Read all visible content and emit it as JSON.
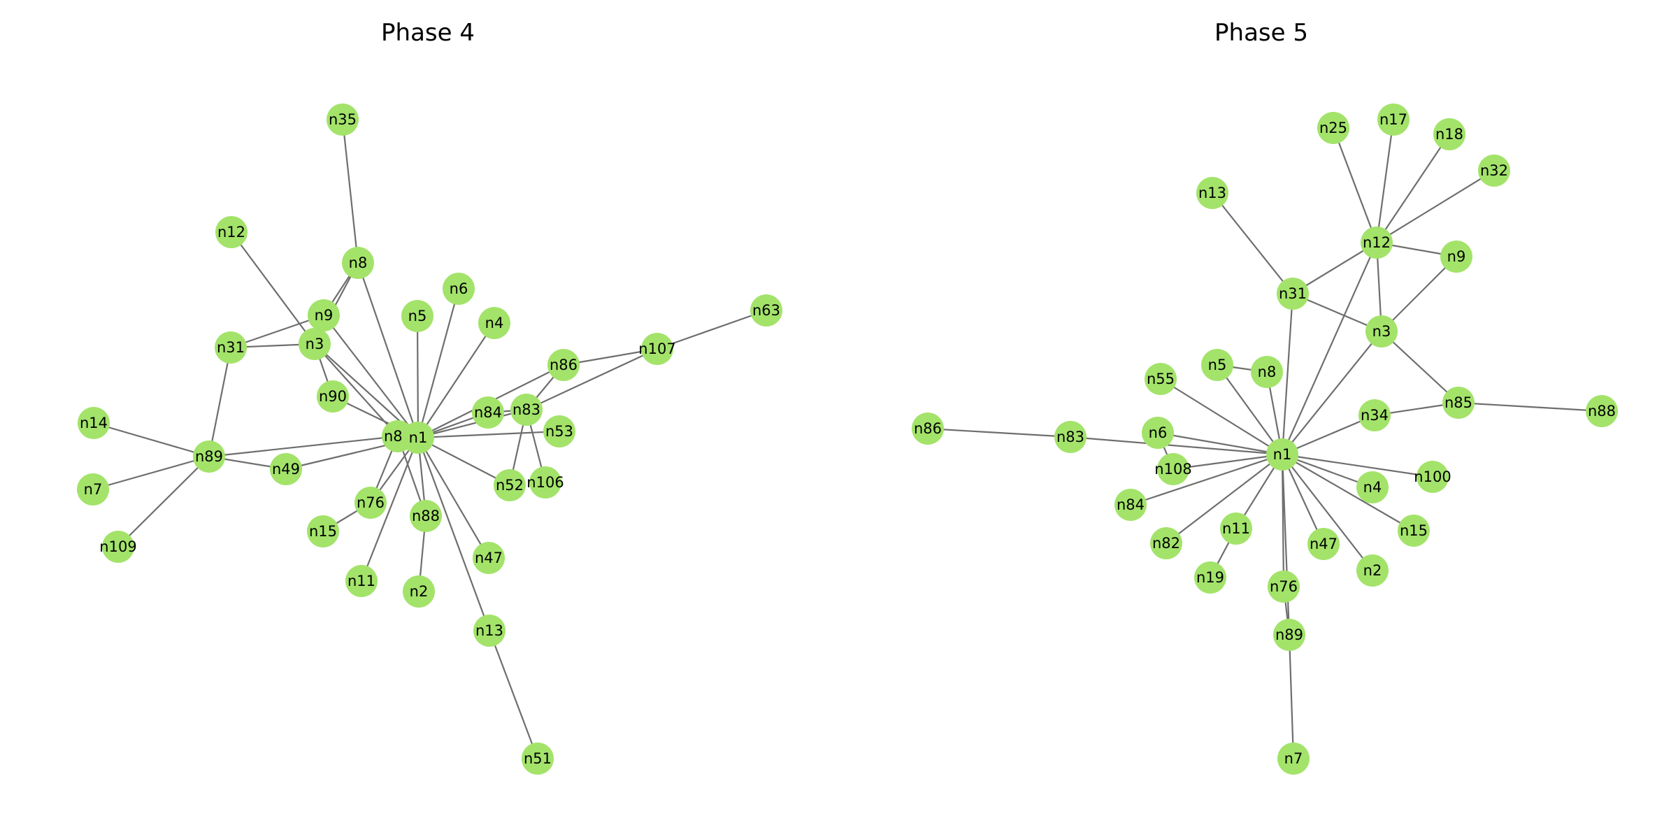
{
  "colors": {
    "node": "#a3e36a",
    "edge": "#6e6e6e",
    "label": "#000000",
    "background": "#ffffff"
  },
  "panels": [
    {
      "title": "Phase 4",
      "nodes": [
        "n35",
        "n12",
        "n8",
        "n9",
        "n31",
        "n3",
        "n5",
        "n6",
        "n4",
        "n63",
        "n107",
        "n86",
        "n90",
        "n14",
        "n85",
        "n1",
        "n84",
        "n83",
        "n53",
        "n89",
        "n49",
        "n52",
        "n106",
        "n76",
        "n88",
        "n7",
        "n15",
        "n47",
        "n109",
        "n11",
        "n2",
        "n13",
        "n51"
      ],
      "edges": [
        [
          "n35",
          "n8"
        ],
        [
          "n12",
          "n3"
        ],
        [
          "n8",
          "n9"
        ],
        [
          "n8",
          "n3"
        ],
        [
          "n8",
          "n1"
        ],
        [
          "n9",
          "n31"
        ],
        [
          "n9",
          "n1"
        ],
        [
          "n31",
          "n3"
        ],
        [
          "n31",
          "n89"
        ],
        [
          "n3",
          "n90"
        ],
        [
          "n3",
          "n85"
        ],
        [
          "n3",
          "n1"
        ],
        [
          "n5",
          "n1"
        ],
        [
          "n6",
          "n1"
        ],
        [
          "n4",
          "n1"
        ],
        [
          "n63",
          "n107"
        ],
        [
          "n107",
          "n86"
        ],
        [
          "n107",
          "n83"
        ],
        [
          "n86",
          "n1"
        ],
        [
          "n86",
          "n83"
        ],
        [
          "n90",
          "n1"
        ],
        [
          "n14",
          "n89"
        ],
        [
          "n89",
          "n85"
        ],
        [
          "n89",
          "n49"
        ],
        [
          "n89",
          "n7"
        ],
        [
          "n89",
          "n109"
        ],
        [
          "n49",
          "n1"
        ],
        [
          "n85",
          "n1"
        ],
        [
          "n1",
          "n84"
        ],
        [
          "n1",
          "n83"
        ],
        [
          "n84",
          "n83"
        ],
        [
          "n83",
          "n52"
        ],
        [
          "n83",
          "n106"
        ],
        [
          "n1",
          "n53"
        ],
        [
          "n1",
          "n52"
        ],
        [
          "n1",
          "n76"
        ],
        [
          "n1",
          "n88"
        ],
        [
          "n1",
          "n47"
        ],
        [
          "n1",
          "n11"
        ],
        [
          "n1",
          "n13"
        ],
        [
          "n85",
          "n76"
        ],
        [
          "n85",
          "n88"
        ],
        [
          "n76",
          "n15"
        ],
        [
          "n88",
          "n2"
        ],
        [
          "n13",
          "n51"
        ]
      ]
    },
    {
      "title": "Phase 5",
      "nodes": [
        "n25",
        "n17",
        "n18",
        "n32",
        "n13",
        "n12",
        "n9",
        "n31",
        "n3",
        "n5",
        "n55",
        "n8",
        "n85",
        "n88",
        "n86",
        "n83",
        "n6",
        "n34",
        "n1",
        "n108",
        "n100",
        "n4",
        "n84",
        "n15",
        "n11",
        "n82",
        "n47",
        "n2",
        "n19",
        "n76",
        "n89",
        "n7"
      ],
      "edges": [
        [
          "n25",
          "n12"
        ],
        [
          "n17",
          "n12"
        ],
        [
          "n18",
          "n12"
        ],
        [
          "n32",
          "n12"
        ],
        [
          "n12",
          "n9"
        ],
        [
          "n12",
          "n31"
        ],
        [
          "n12",
          "n3"
        ],
        [
          "n12",
          "n1"
        ],
        [
          "n13",
          "n31"
        ],
        [
          "n31",
          "n3"
        ],
        [
          "n31",
          "n1"
        ],
        [
          "n9",
          "n3"
        ],
        [
          "n3",
          "n85"
        ],
        [
          "n3",
          "n1"
        ],
        [
          "n85",
          "n88"
        ],
        [
          "n85",
          "n34"
        ],
        [
          "n5",
          "n8"
        ],
        [
          "n5",
          "n1"
        ],
        [
          "n8",
          "n1"
        ],
        [
          "n55",
          "n1"
        ],
        [
          "n86",
          "n83"
        ],
        [
          "n83",
          "n1"
        ],
        [
          "n6",
          "n1"
        ],
        [
          "n6",
          "n108"
        ],
        [
          "n34",
          "n1"
        ],
        [
          "n108",
          "n1"
        ],
        [
          "n1",
          "n100"
        ],
        [
          "n1",
          "n4"
        ],
        [
          "n1",
          "n84"
        ],
        [
          "n1",
          "n15"
        ],
        [
          "n1",
          "n11"
        ],
        [
          "n1",
          "n82"
        ],
        [
          "n1",
          "n47"
        ],
        [
          "n1",
          "n2"
        ],
        [
          "n1",
          "n76"
        ],
        [
          "n1",
          "n89"
        ],
        [
          "n11",
          "n19"
        ],
        [
          "n76",
          "n89"
        ],
        [
          "n89",
          "n7"
        ]
      ]
    }
  ]
}
